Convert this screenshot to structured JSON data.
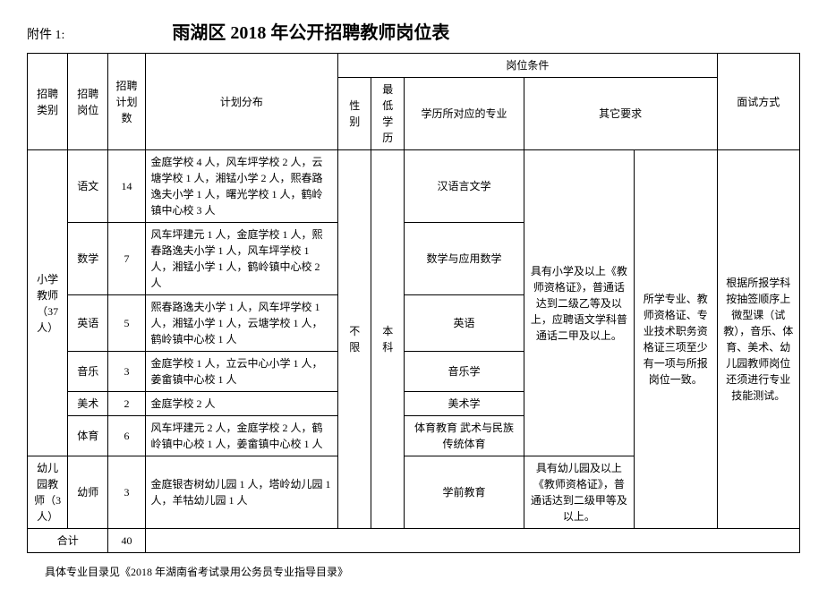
{
  "attachment_label": "附件 1:",
  "title": "雨湖区 2018 年公开招聘教师岗位表",
  "headers": {
    "category": "招聘类别",
    "position": "招聘岗位",
    "plan_count": "招聘计划数",
    "distribution": "计划分布",
    "conditions": "岗位条件",
    "gender": "性别",
    "min_edu": "最低学历",
    "major": "学历所对应的专业",
    "other_req": "其它要求",
    "interview": "面试方式"
  },
  "categories": {
    "primary": "小学教师（37人）",
    "kindergarten": "幼儿园教师（3人）"
  },
  "rows": [
    {
      "position": "语文",
      "count": "14",
      "dist": "金庭学校 4 人，风车坪学校 2 人，云塘学校 1 人，湘锰小学 2 人，熙春路逸夫小学 1 人，曙光学校 1 人，鹤岭镇中心校 3 人",
      "major": "汉语言文学"
    },
    {
      "position": "数学",
      "count": "7",
      "dist": "风车坪建元 1 人，金庭学校 1 人，熙春路逸夫小学 1 人，风车坪学校 1 人，湘锰小学 1 人，鹤岭镇中心校 2 人",
      "major": "数学与应用数学"
    },
    {
      "position": "英语",
      "count": "5",
      "dist": "熙春路逸夫小学 1 人，风车坪学校 1 人，湘锰小学 1 人，云塘学校 1 人，鹤岭镇中心校 1 人",
      "major": "英语"
    },
    {
      "position": "音乐",
      "count": "3",
      "dist": "金庭学校 1 人，立云中心小学 1 人，姜畲镇中心校 1 人",
      "major": "音乐学"
    },
    {
      "position": "美术",
      "count": "2",
      "dist": "金庭学校 2 人",
      "major": "美术学"
    },
    {
      "position": "体育",
      "count": "6",
      "dist": "风车坪建元 2 人，金庭学校 2 人，鹤岭镇中心校 1 人，姜畲镇中心校 1 人",
      "major": "体育教育\n武术与民族传统体育"
    }
  ],
  "kindergarten_row": {
    "position": "幼师",
    "count": "3",
    "dist": "金庭银杏树幼儿园 1 人，塔岭幼儿园 1 人，羊牯幼儿园 1 人",
    "major": "学前教育",
    "other": "具有幼儿园及以上《教师资格证》，普通话达到二级甲等及以上。"
  },
  "shared": {
    "gender": "不限",
    "min_edu": "本科",
    "primary_other1": "具有小学及以上《教师资格证》，普通话达到二级乙等及以上，应聘语文学科普通话二甲及以上。",
    "primary_other2": "所学专业、教师资格证、专业技术职务资格证三项至少有一项与所报岗位一致。",
    "interview": "根据所报学科按抽签顺序上微型课（试教），音乐、体育、美术、幼儿园教师岗位还须进行专业技能测试。"
  },
  "total": {
    "label": "合计",
    "count": "40"
  },
  "footer": "具体专业目录见《2018 年湖南省考试录用公务员专业指导目录》"
}
